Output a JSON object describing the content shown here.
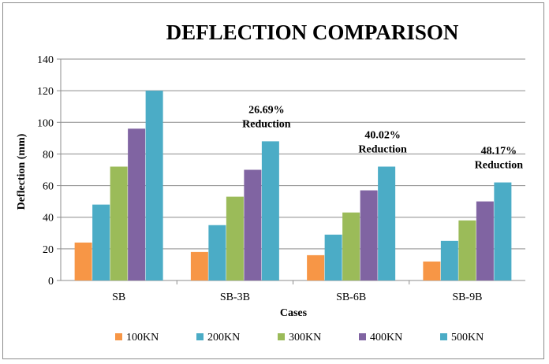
{
  "chart_data": {
    "type": "bar",
    "title": "DEFLECTION COMPARISON",
    "xlabel": "Cases",
    "ylabel": "Deflection (mm)",
    "ylim": [
      0,
      140
    ],
    "yticks": [
      0,
      20,
      40,
      60,
      80,
      100,
      120,
      140
    ],
    "grid": true,
    "legend_position": "bottom",
    "categories": [
      "SB",
      "SB-3B",
      "SB-6B",
      "SB-9B"
    ],
    "series": [
      {
        "name": "100KN",
        "color": "#f79646",
        "values": [
          24,
          18,
          16,
          12
        ]
      },
      {
        "name": "200KN",
        "color": "#4bacc6",
        "values": [
          48,
          35,
          29,
          25
        ]
      },
      {
        "name": "300KN",
        "color": "#9bbb59",
        "values": [
          72,
          53,
          43,
          38
        ]
      },
      {
        "name": "400KN",
        "color": "#8064a2",
        "values": [
          96,
          70,
          57,
          50
        ]
      },
      {
        "name": "500KN",
        "color": "#4bacc6",
        "values": [
          120,
          88,
          72,
          62
        ]
      }
    ],
    "annotations": [
      {
        "category": "SB-3B",
        "value": "26.69%",
        "text": "Reduction"
      },
      {
        "category": "SB-6B",
        "value": "40.02%",
        "text": "Reduction"
      },
      {
        "category": "SB-9B",
        "value": "48.17%",
        "text": "Reduction"
      }
    ]
  }
}
